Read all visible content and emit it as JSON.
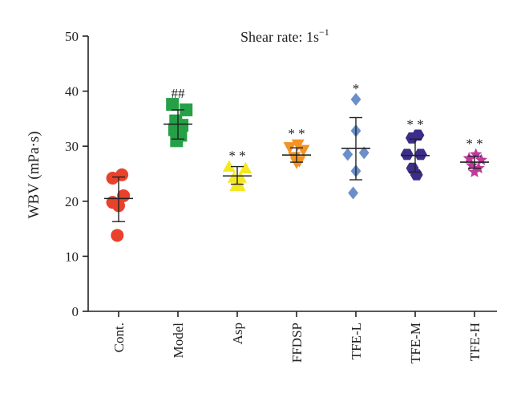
{
  "chart_data": {
    "type": "scatter",
    "title": "Shear rate: 1s",
    "title_superscript": "−1",
    "ylabel": "WBV (mPa·s)",
    "xlabel": "",
    "ylim": [
      0,
      50
    ],
    "yticks": [
      "0",
      "10",
      "20",
      "30",
      "40",
      "50"
    ],
    "grid": false,
    "categories": [
      "Cont.",
      "Model",
      "Asp",
      "FFDSP",
      "TFE-L",
      "TFE-M",
      "TFE-H"
    ],
    "series": [
      {
        "category": "Cont.",
        "marker": "circle",
        "color": "#e8412c",
        "points": [
          [
            -0.22,
            24.2
          ],
          [
            0.12,
            24.8
          ],
          [
            -0.22,
            19.8
          ],
          [
            0.18,
            21.0
          ],
          [
            0.0,
            19.2
          ],
          [
            -0.05,
            13.8
          ]
        ],
        "mean": 20.5,
        "sd_low": 16.3,
        "sd_high": 24.4,
        "significance": ""
      },
      {
        "category": "Model",
        "marker": "square",
        "color": "#25a046",
        "points": [
          [
            -0.2,
            37.6
          ],
          [
            0.3,
            36.6
          ],
          [
            -0.08,
            34.6
          ],
          [
            0.15,
            33.8
          ],
          [
            -0.12,
            33.0
          ],
          [
            0.1,
            32.0
          ],
          [
            -0.05,
            31.0
          ]
        ],
        "mean": 34.0,
        "sd_low": 31.3,
        "sd_high": 36.6,
        "significance": "##"
      },
      {
        "category": "Asp",
        "marker": "triangle-up",
        "color": "#f4e823",
        "points": [
          [
            -0.3,
            26.3
          ],
          [
            0.3,
            26.0
          ],
          [
            -0.12,
            24.3
          ],
          [
            0.12,
            24.3
          ],
          [
            -0.05,
            22.8
          ],
          [
            0.08,
            22.8
          ]
        ],
        "mean": 24.6,
        "sd_low": 23.1,
        "sd_high": 26.3,
        "significance": "**"
      },
      {
        "category": "FFDSP",
        "marker": "triangle-down",
        "color": "#f29325",
        "points": [
          [
            -0.25,
            29.8
          ],
          [
            0.05,
            30.3
          ],
          [
            0.25,
            29.3
          ],
          [
            -0.08,
            28.0
          ],
          [
            0.1,
            27.3
          ],
          [
            0.0,
            27.0
          ]
        ],
        "mean": 28.4,
        "sd_low": 27.1,
        "sd_high": 29.7,
        "significance": "**"
      },
      {
        "category": "TFE-L",
        "marker": "diamond",
        "color": "#6a8fc9",
        "points": [
          [
            0.0,
            38.5
          ],
          [
            0.0,
            32.8
          ],
          [
            -0.3,
            28.5
          ],
          [
            0.3,
            28.8
          ],
          [
            0.0,
            25.5
          ],
          [
            -0.1,
            21.5
          ]
        ],
        "mean": 29.6,
        "sd_low": 23.9,
        "sd_high": 35.2,
        "significance": "*"
      },
      {
        "category": "TFE-M",
        "marker": "hexagon",
        "color": "#3b2d8a",
        "points": [
          [
            -0.12,
            31.5
          ],
          [
            0.1,
            32.0
          ],
          [
            -0.3,
            28.5
          ],
          [
            0.2,
            28.5
          ],
          [
            -0.1,
            26.0
          ],
          [
            0.05,
            24.8
          ]
        ],
        "mean": 28.3,
        "sd_low": 25.3,
        "sd_high": 31.3,
        "significance": "**"
      },
      {
        "category": "TFE-H",
        "marker": "star",
        "color": "#c0399b",
        "points": [
          [
            -0.2,
            27.8
          ],
          [
            0.05,
            28.5
          ],
          [
            0.25,
            27.5
          ],
          [
            -0.1,
            26.5
          ],
          [
            0.15,
            26.0
          ],
          [
            0.0,
            25.3
          ]
        ],
        "mean": 27.1,
        "sd_low": 26.0,
        "sd_high": 28.2,
        "significance": "**"
      }
    ]
  }
}
